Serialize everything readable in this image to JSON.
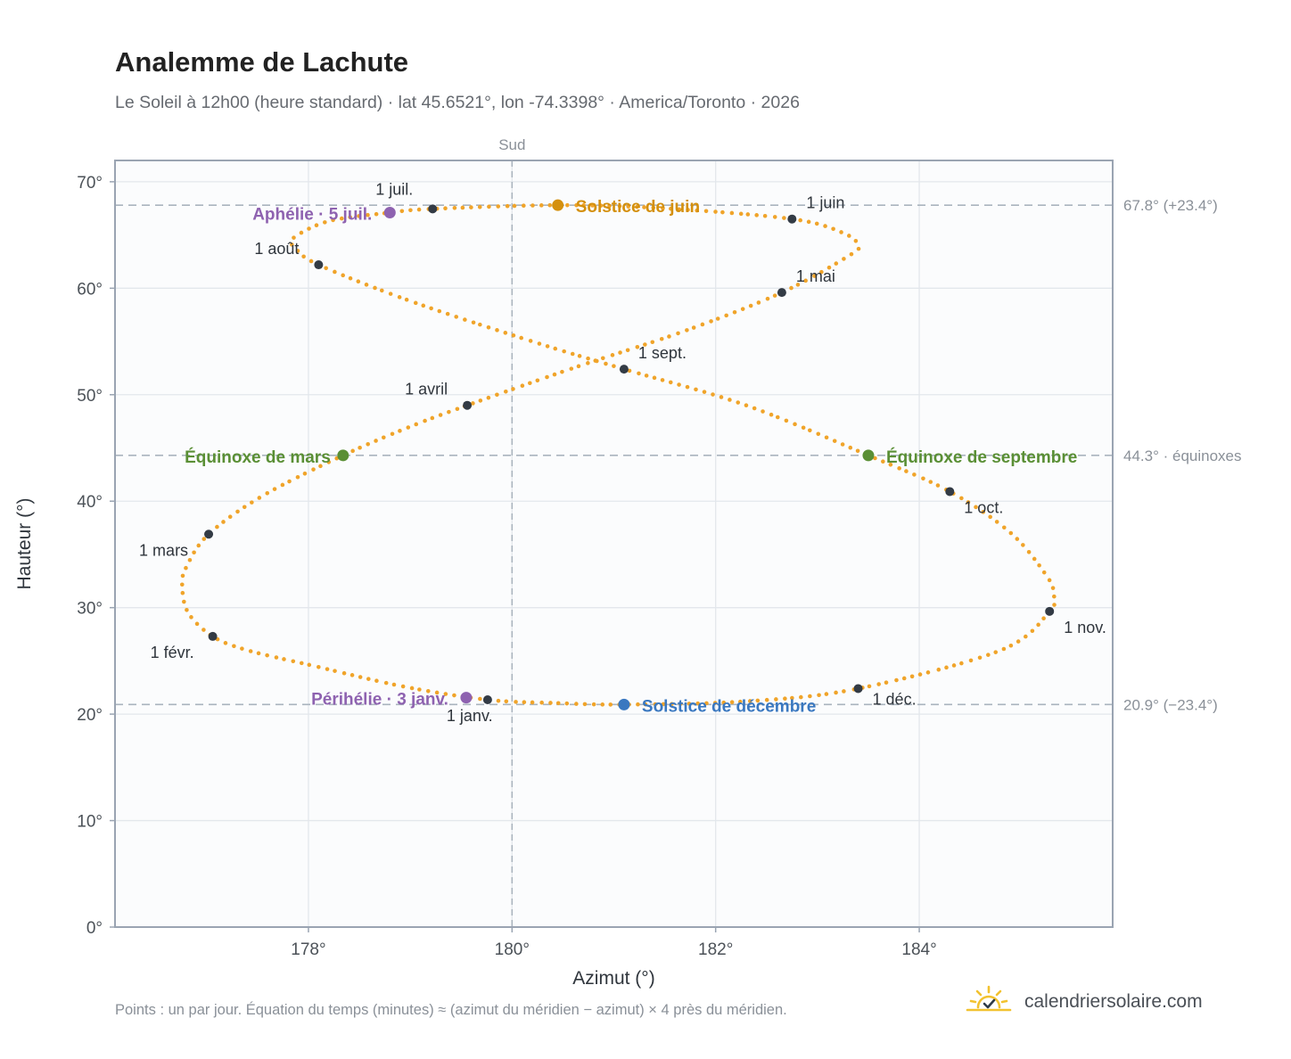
{
  "title": "Analemme de Lachute",
  "subtitle": "Le Soleil à 12h00 (heure standard) · lat 45.6521°, lon -74.3398° · America/Toronto · 2026",
  "footnote": "Points : un par jour. Équation du temps (minutes) ≈ (azimut du méridien − azimut) × 4 près du méridien.",
  "brand": "calendriersolaire.com",
  "icons": {
    "brand": "sun-logo-icon"
  },
  "colors": {
    "curve": "#f0a42a",
    "month_marker": "#333b45",
    "equinox": "#5a8f35",
    "june_solstice": "#d4900e",
    "december_solstice": "#3a78c0",
    "apsis": "#8e62b0",
    "axis_frame": "#9aa4b2",
    "reference_line": "#aab4be"
  },
  "chart_data": {
    "type": "scatter",
    "title": "Analemme de Lachute",
    "xlabel": "Azimut (°)",
    "ylabel": "Hauteur (°)",
    "xlim": [
      176.1,
      185.9
    ],
    "ylim": [
      0,
      72
    ],
    "x_ticks": [
      178,
      180,
      182,
      184
    ],
    "x_tick_labels": [
      "178°",
      "180°",
      "182°",
      "184°"
    ],
    "y_ticks": [
      0,
      10,
      20,
      30,
      40,
      50,
      60,
      70
    ],
    "y_tick_labels": [
      "0°",
      "10°",
      "20°",
      "30°",
      "40°",
      "50°",
      "60°",
      "70°"
    ],
    "grid": true,
    "meridian": {
      "x": 180,
      "label": "Sud"
    },
    "reference_lines": [
      {
        "y": 67.8,
        "label": "67.8° (+23.4°)"
      },
      {
        "y": 44.3,
        "label": "44.3° · équinoxes"
      },
      {
        "y": 20.9,
        "label": "20.9° (−23.4°)"
      }
    ],
    "daily_points": [
      {
        "x": 179.76,
        "y": 21.35
      },
      {
        "x": 178.93,
        "y": 22.6
      },
      {
        "x": 178.02,
        "y": 24.6
      },
      {
        "x": 177.4,
        "y": 26.0
      },
      {
        "x": 177.06,
        "y": 27.3
      },
      {
        "x": 176.82,
        "y": 29.5
      },
      {
        "x": 176.76,
        "y": 32.0
      },
      {
        "x": 176.8,
        "y": 33.8
      },
      {
        "x": 177.02,
        "y": 36.9
      },
      {
        "x": 177.55,
        "y": 40.5
      },
      {
        "x": 178.34,
        "y": 44.3
      },
      {
        "x": 179.0,
        "y": 47.0
      },
      {
        "x": 179.56,
        "y": 49.0
      },
      {
        "x": 180.6,
        "y": 52.5
      },
      {
        "x": 181.7,
        "y": 56.0
      },
      {
        "x": 182.65,
        "y": 59.6
      },
      {
        "x": 183.3,
        "y": 63.0
      },
      {
        "x": 183.4,
        "y": 64.0
      },
      {
        "x": 183.25,
        "y": 65.2
      },
      {
        "x": 182.75,
        "y": 66.5
      },
      {
        "x": 181.5,
        "y": 67.5
      },
      {
        "x": 180.45,
        "y": 67.8
      },
      {
        "x": 179.22,
        "y": 67.45
      },
      {
        "x": 178.8,
        "y": 67.1
      },
      {
        "x": 178.2,
        "y": 66.3
      },
      {
        "x": 177.85,
        "y": 64.7
      },
      {
        "x": 177.87,
        "y": 63.8
      },
      {
        "x": 178.1,
        "y": 62.2
      },
      {
        "x": 179.0,
        "y": 58.8
      },
      {
        "x": 180.2,
        "y": 55.0
      },
      {
        "x": 181.1,
        "y": 52.4
      },
      {
        "x": 182.3,
        "y": 49.0
      },
      {
        "x": 183.5,
        "y": 44.3
      },
      {
        "x": 184.3,
        "y": 40.9
      },
      {
        "x": 184.9,
        "y": 37.0
      },
      {
        "x": 185.25,
        "y": 33.0
      },
      {
        "x": 185.32,
        "y": 31.3
      },
      {
        "x": 185.28,
        "y": 29.65
      },
      {
        "x": 184.8,
        "y": 26.0
      },
      {
        "x": 183.4,
        "y": 22.4
      },
      {
        "x": 182.3,
        "y": 21.2
      },
      {
        "x": 181.1,
        "y": 20.9
      },
      {
        "x": 180.4,
        "y": 21.05
      },
      {
        "x": 179.76,
        "y": 21.35
      }
    ],
    "month_markers": [
      {
        "label": "1 janv.",
        "x": 179.76,
        "y": 21.35
      },
      {
        "label": "1 févr.",
        "x": 177.06,
        "y": 27.3
      },
      {
        "label": "1 mars",
        "x": 177.02,
        "y": 36.9
      },
      {
        "label": "1 avril",
        "x": 179.56,
        "y": 49.0
      },
      {
        "label": "1 mai",
        "x": 182.65,
        "y": 59.6
      },
      {
        "label": "1 juin",
        "x": 182.75,
        "y": 66.5
      },
      {
        "label": "1 juil.",
        "x": 179.22,
        "y": 67.45
      },
      {
        "label": "1 août",
        "x": 178.1,
        "y": 62.2
      },
      {
        "label": "1 sept.",
        "x": 181.1,
        "y": 52.4
      },
      {
        "label": "1 oct.",
        "x": 184.3,
        "y": 40.9
      },
      {
        "label": "1 nov.",
        "x": 185.28,
        "y": 29.65
      },
      {
        "label": "1 déc.",
        "x": 183.4,
        "y": 22.4
      }
    ],
    "events": [
      {
        "label": "Équinoxe de mars",
        "x": 178.34,
        "y": 44.3,
        "kind": "equinox"
      },
      {
        "label": "Solstice de juin",
        "x": 180.45,
        "y": 67.8,
        "kind": "june_solstice"
      },
      {
        "label": "Équinoxe de septembre",
        "x": 183.5,
        "y": 44.3,
        "kind": "equinox"
      },
      {
        "label": "Solstice de décembre",
        "x": 181.1,
        "y": 20.9,
        "kind": "december_solstice"
      },
      {
        "label": "Aphélie · 5 juil.",
        "x": 178.8,
        "y": 67.1,
        "kind": "apsis"
      },
      {
        "label": "Périhélie · 3 janv.",
        "x": 179.55,
        "y": 21.55,
        "kind": "apsis"
      }
    ]
  }
}
